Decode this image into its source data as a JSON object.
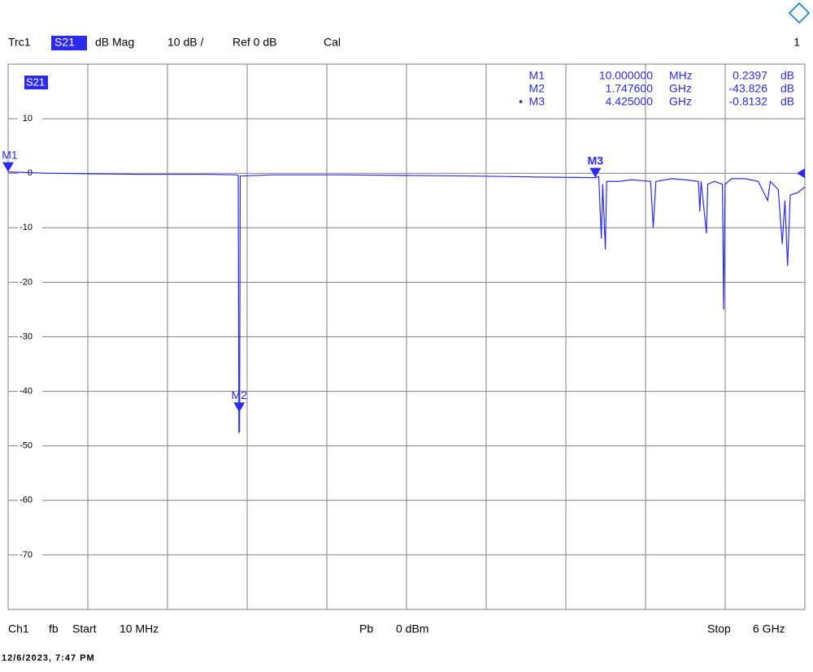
{
  "header": {
    "trace": "Trc1",
    "parameter": "S21",
    "format": "dB Mag",
    "scale": "10 dB /",
    "reference": "Ref 0 dB",
    "calibration": "Cal",
    "window": "1"
  },
  "chart_data": {
    "type": "line",
    "trace_label": "S21",
    "series": [
      {
        "name": "S21",
        "color": "#2b2bf0",
        "x": [
          10,
          300,
          600,
          1000,
          1500,
          1720,
          1740,
          1745,
          1750,
          1755,
          2000,
          2500,
          3000,
          3500,
          4000,
          4425,
          4450,
          4470,
          4480,
          4490,
          4500,
          4510,
          4600,
          4700,
          4840,
          4860,
          4880,
          5000,
          5100,
          5200,
          5210,
          5220,
          5260,
          5270,
          5320,
          5380,
          5390,
          5400,
          5450,
          5550,
          5650,
          5720,
          5740,
          5800,
          5830,
          5850,
          5870,
          5890,
          5950,
          6000
        ],
        "values": [
          0.2397,
          0,
          -0.1,
          -0.2,
          -0.2,
          -0.3,
          -0.4,
          -47.5,
          -47.3,
          -0.5,
          -0.3,
          -0.3,
          -0.4,
          -0.5,
          -0.7,
          -0.8132,
          -0.6,
          -12,
          -2,
          -8,
          -14,
          -1.5,
          -1.5,
          -1.2,
          -1.5,
          -10,
          -1.5,
          -1,
          -1.2,
          -1.5,
          -7,
          -1.5,
          -11,
          -2,
          -1.5,
          -2,
          -25,
          -2,
          -1,
          -1,
          -1.5,
          -5,
          -1.5,
          -3,
          -13,
          -5,
          -17,
          -4,
          -3.5,
          -2.5
        ]
      }
    ],
    "xlim": [
      10,
      6000
    ],
    "ylim": [
      -80,
      20
    ],
    "yticks": [
      10,
      0,
      -10,
      -20,
      -30,
      -40,
      -50,
      -60,
      -70
    ],
    "grid": true,
    "active_marker_indicator": "•",
    "markers": [
      {
        "name": "M1",
        "x": {
          "value": 10,
          "label": "10.000000"
        },
        "x_unit": "MHz",
        "y": 0.2397,
        "y_unit": "dB"
      },
      {
        "name": "M2",
        "x": {
          "value": 1747.6,
          "label": "1.747600"
        },
        "x_unit": "GHz",
        "y": -43.826,
        "y_unit": "dB"
      },
      {
        "name": "M3",
        "x": {
          "value": 4425,
          "label": "4.425000"
        },
        "x_unit": "GHz",
        "y": -0.8132,
        "y_unit": "dB"
      }
    ]
  },
  "footer": {
    "channel": "Ch1",
    "sweep": "fb",
    "start_label": "Start",
    "start": "10 MHz",
    "power_label": "Pb",
    "power": "0 dBm",
    "stop_label": "Stop",
    "stop": "6 GHz",
    "timestamp": "12/6/2023, 7:47 PM"
  }
}
